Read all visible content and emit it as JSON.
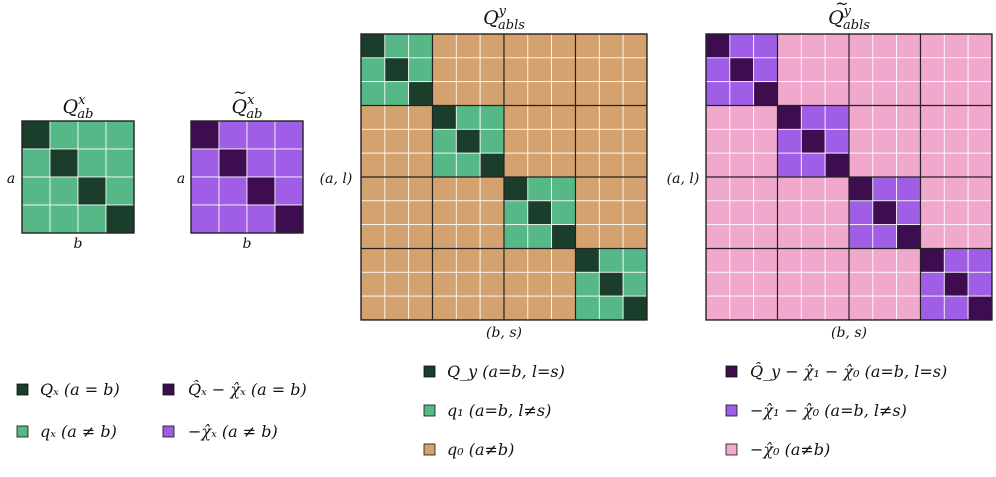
{
  "colors": {
    "diag_dark": "#1b3d2b",
    "green": "#55b886",
    "tan": "#d4a26f",
    "purple_dark": "#3d0d4f",
    "purple": "#a05ee6",
    "pink": "#f0a8cc"
  },
  "matrices": [
    {
      "id": "Qx",
      "title_base": "Q",
      "title_sup": "x",
      "title_sub": "ab",
      "tilde": false,
      "row_label": "a",
      "col_label": "b",
      "size": 4,
      "block": 1,
      "colors": {
        "diag": "#1b3d2b",
        "intra": "#55b886",
        "off": "#55b886"
      }
    },
    {
      "id": "Qx_tilde",
      "title_base": "Q",
      "title_sup": "x",
      "title_sub": "ab",
      "tilde": true,
      "row_label": "a",
      "col_label": "b",
      "size": 4,
      "block": 1,
      "colors": {
        "diag": "#3d0d4f",
        "intra": "#a05ee6",
        "off": "#a05ee6"
      }
    },
    {
      "id": "Qy",
      "title_base": "Q",
      "title_sup": "y",
      "title_sub": "abls",
      "tilde": false,
      "row_label": "(a, l)",
      "col_label": "(b, s)",
      "size": 12,
      "block": 3,
      "colors": {
        "diag": "#1b3d2b",
        "intra": "#55b886",
        "off": "#d4a26f"
      }
    },
    {
      "id": "Qy_tilde",
      "title_base": "Q",
      "title_sup": "y",
      "title_sub": "abls",
      "tilde": true,
      "row_label": "(a, l)",
      "col_label": "(b, s)",
      "size": 12,
      "block": 3,
      "colors": {
        "diag": "#3d0d4f",
        "intra": "#a05ee6",
        "off": "#f0a8cc"
      }
    }
  ],
  "legend": {
    "qx": [
      {
        "color": "#1b3d2b",
        "label": "Qₓ   (a = b)"
      },
      {
        "color": "#55b886",
        "label": "qₓ   (a ≠ b)"
      }
    ],
    "qx_tilde": [
      {
        "color": "#3d0d4f",
        "label": "Q̂ₓ − χ̂ₓ   (a = b)"
      },
      {
        "color": "#a05ee6",
        "label": "−χ̂ₓ   (a ≠ b)"
      }
    ],
    "qy": [
      {
        "color": "#1b3d2b",
        "label": "Q_y   (a=b,  l=s)"
      },
      {
        "color": "#55b886",
        "label": "q₁   (a=b,  l≠s)"
      },
      {
        "color": "#d4a26f",
        "label": "q₀   (a≠b)"
      }
    ],
    "qy_tilde": [
      {
        "color": "#3d0d4f",
        "label": "Q̂_y − χ̂₁ − χ̂₀   (a=b,  l=s)"
      },
      {
        "color": "#a05ee6",
        "label": "−χ̂₁ − χ̂₀   (a=b,  l≠s)"
      },
      {
        "color": "#f0a8cc",
        "label": "−χ̂₀   (a≠b)"
      }
    ]
  }
}
